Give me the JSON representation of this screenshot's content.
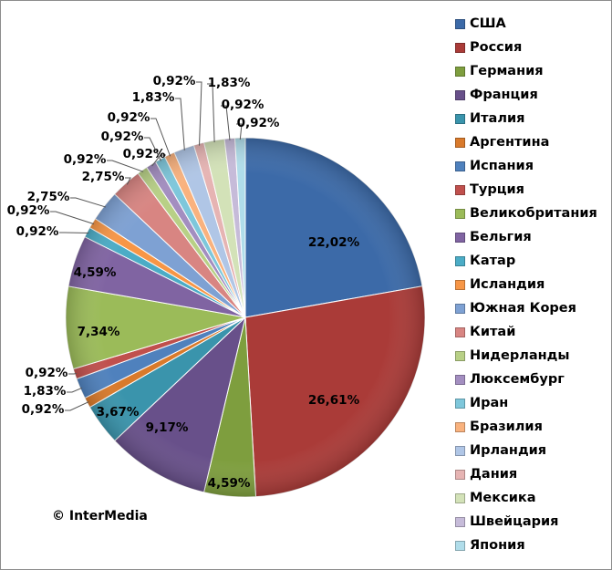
{
  "chart_data": {
    "type": "pie",
    "title": "",
    "start_angle": "top, clockwise",
    "legend_placement": "right",
    "categories": [
      "США",
      "Россия",
      "Германия",
      "Франция",
      "Италия",
      "Аргентина",
      "Испания",
      "Турция",
      "Великобритания",
      "Бельгия",
      "Катар",
      "Исландия",
      "Южная Корея",
      "Китай",
      "Нидерланды",
      "Люксембург",
      "Иран",
      "Бразилия",
      "Ирландия",
      "Дания",
      "Мексика",
      "Швейцария",
      "Япония"
    ],
    "values": [
      22.02,
      26.61,
      4.59,
      9.17,
      3.67,
      0.92,
      1.83,
      0.92,
      7.34,
      4.59,
      0.92,
      0.92,
      2.75,
      2.75,
      0.92,
      0.92,
      0.92,
      0.92,
      1.83,
      0.92,
      1.83,
      0.92,
      0.92
    ],
    "data_labels": [
      "22,02%",
      "26,61%",
      "4,59%",
      "9,17%",
      "3,67%",
      "0,92%",
      "1,83%",
      "0,92%",
      "7,34%",
      "4,59%",
      "0,92%",
      "0,92%",
      "2,75%",
      "2,75%",
      "0,92%",
      "0,92%",
      "0,92%",
      "0,92%",
      "1,83%",
      "0,92%",
      "1,83%",
      "0,92%",
      "0,92%"
    ],
    "colors": [
      "#3c6aa8",
      "#aa3b38",
      "#7e9e3e",
      "#68508a",
      "#3a94ac",
      "#d97a2b",
      "#4f81bd",
      "#c0504d",
      "#9bbb59",
      "#8064a2",
      "#4bacc6",
      "#f79646",
      "#7ea1d3",
      "#d88582",
      "#b8d086",
      "#a38ec0",
      "#7ec7db",
      "#f9b27e",
      "#b0c6e6",
      "#e6b4b3",
      "#d3e2b8",
      "#c6bbd9",
      "#b0ddea"
    ]
  },
  "copyright": "© InterMedia"
}
